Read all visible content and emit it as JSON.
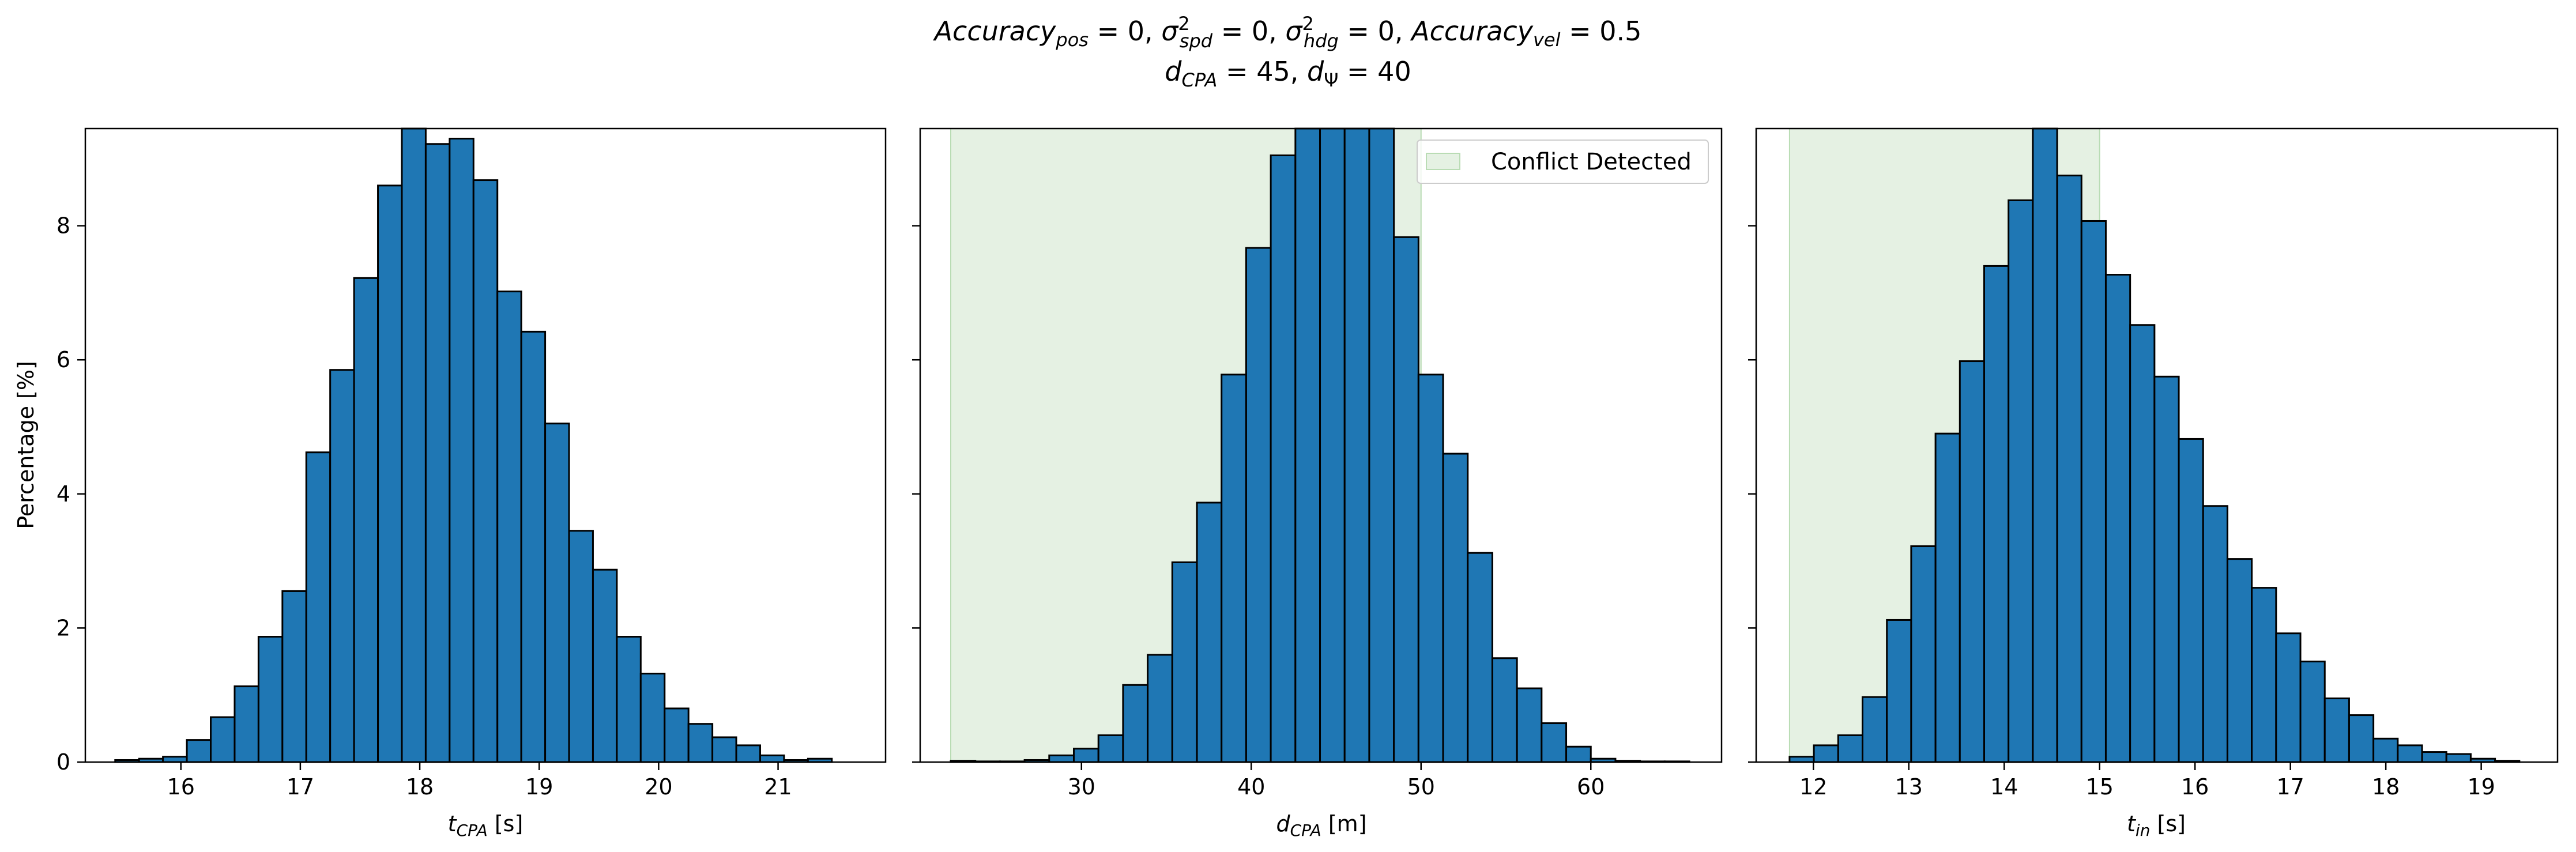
{
  "figure": {
    "title": {
      "line1": {
        "acc_pos_main": "Accuracy",
        "acc_pos_sub": "pos",
        "acc_pos_rest": " = 0, ",
        "spd_sigma": "σ",
        "spd_sup": "2",
        "spd_sub": "spd",
        "spd_rest": " = 0, ",
        "hdg_sigma": "σ",
        "hdg_sup": "2",
        "hdg_sub": "hdg",
        "hdg_rest": " = 0, ",
        "acc_vel_main": "Accuracy",
        "acc_vel_sub": "vel",
        "acc_vel_rest": " = 0.5"
      },
      "line2": {
        "dcpa_main": "d",
        "dcpa_sub": "CPA",
        "dcpa_rest": " = 45, ",
        "dpsi_main": "d",
        "dpsi_sub": "Ψ",
        "dpsi_rest": " = 40"
      }
    }
  },
  "colors": {
    "bar": "#1f77b4",
    "edge": "#000000",
    "shade": "#e5f1e3",
    "shade_edge": "#b9dcb4"
  },
  "chart_data": [
    {
      "type": "bar",
      "subtype": "histogram",
      "ylabel": "Percentage [%]",
      "xlabel": {
        "main": "t",
        "sub": "CPA",
        "unit": " [s]"
      },
      "xlim": [
        15.2,
        21.9
      ],
      "ylim": [
        0,
        9.45
      ],
      "xticks": [
        16,
        17,
        18,
        19,
        20,
        21
      ],
      "yticks": [
        0,
        2,
        4,
        6,
        8
      ],
      "bin_start": 15.45,
      "bin_width": 0.2,
      "values": [
        0.03,
        0.05,
        0.08,
        0.33,
        0.67,
        1.13,
        1.87,
        2.55,
        4.62,
        5.85,
        7.22,
        8.6,
        9.45,
        9.22,
        9.3,
        8.68,
        7.02,
        6.42,
        5.05,
        3.45,
        2.87,
        1.87,
        1.32,
        0.8,
        0.57,
        0.37,
        0.25,
        0.1,
        0.03,
        0.05
      ],
      "legend": null
    },
    {
      "type": "bar",
      "subtype": "histogram",
      "ylabel": "",
      "xlabel": {
        "main": "d",
        "sub": "CPA",
        "unit": " [m]"
      },
      "xlim": [
        20.5,
        67.7
      ],
      "ylim": [
        0,
        9.45
      ],
      "xticks": [
        30,
        40,
        50,
        60
      ],
      "yticks": [
        0,
        2,
        4,
        6,
        8
      ],
      "bin_start": 22.3,
      "bin_width": 1.45,
      "values": [
        0.02,
        0.01,
        0.01,
        0.03,
        0.1,
        0.2,
        0.4,
        1.15,
        1.6,
        2.98,
        3.87,
        5.78,
        7.67,
        9.05,
        9.45,
        9.45,
        9.45,
        9.45,
        7.83,
        5.78,
        4.6,
        3.12,
        1.55,
        1.1,
        0.58,
        0.23,
        0.05,
        0.02,
        0.01,
        0.01
      ],
      "shade": {
        "from": 22.3,
        "to": 50
      },
      "legend": {
        "label": "Conflict Detected",
        "position": "upper right"
      }
    },
    {
      "type": "bar",
      "subtype": "histogram",
      "ylabel": "",
      "xlabel": {
        "main": "t",
        "sub": "in",
        "unit": " [s]"
      },
      "xlim": [
        11.4,
        19.8
      ],
      "ylim": [
        0,
        9.45
      ],
      "xticks": [
        12,
        13,
        14,
        15,
        16,
        17,
        18,
        19
      ],
      "yticks": [
        0,
        2,
        4,
        6,
        8
      ],
      "bin_start": 11.75,
      "bin_width": 0.255,
      "values": [
        0.08,
        0.25,
        0.4,
        0.97,
        2.12,
        3.22,
        4.9,
        5.98,
        7.4,
        8.38,
        9.45,
        8.75,
        8.07,
        7.27,
        6.52,
        5.75,
        4.82,
        3.82,
        3.03,
        2.6,
        1.92,
        1.5,
        0.95,
        0.7,
        0.35,
        0.25,
        0.15,
        0.12,
        0.05,
        0.02
      ],
      "shade": {
        "from": 11.75,
        "to": 15
      },
      "legend": null
    }
  ]
}
